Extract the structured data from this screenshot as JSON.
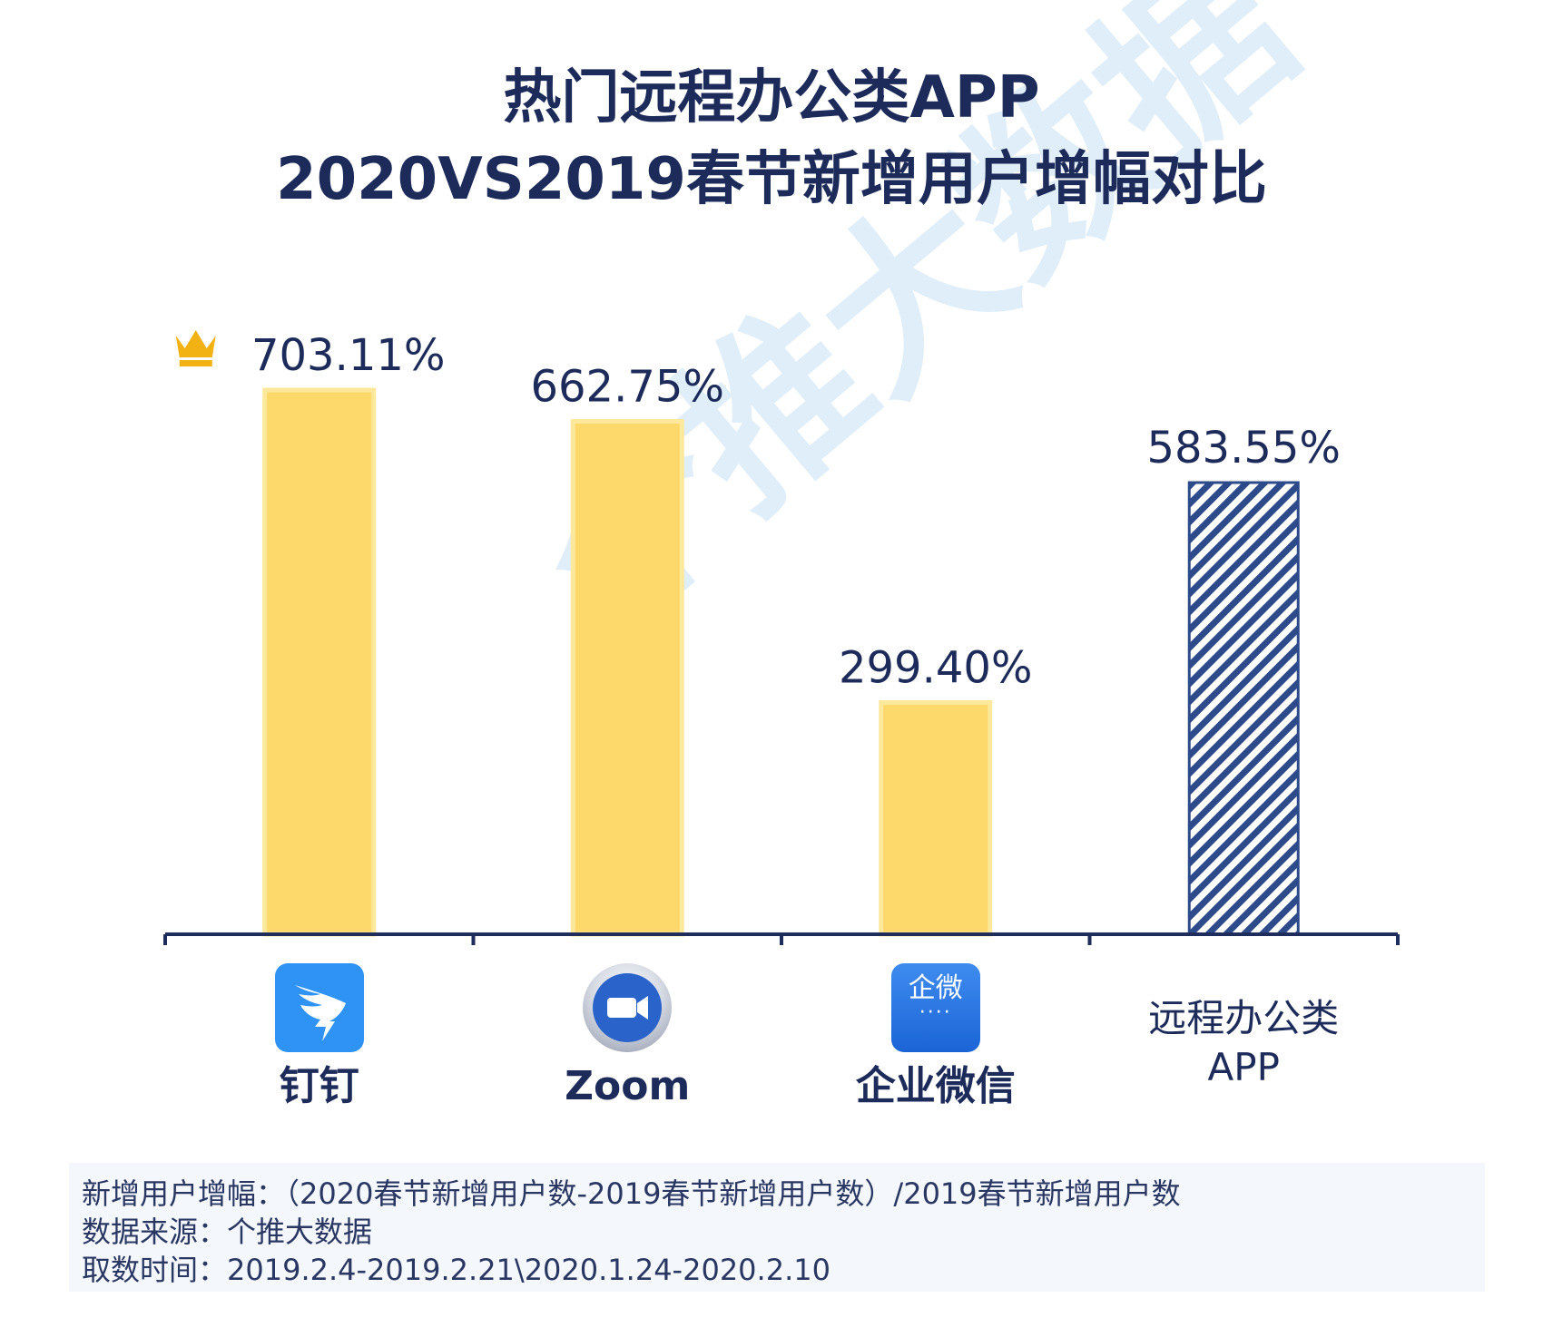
{
  "title": {
    "line1": "热门远程办公类APP",
    "line2": "2020VS2019春节新增用户增幅对比"
  },
  "watermark": "个推大数据",
  "chart_data": {
    "type": "bar",
    "categories": [
      "钉钉",
      "Zoom",
      "企业微信",
      "远程办公类APP"
    ],
    "category_lines": [
      [
        "钉钉"
      ],
      [
        "Zoom"
      ],
      [
        "企业微信"
      ],
      [
        "远程办公类",
        "APP"
      ]
    ],
    "values": [
      703.11,
      662.75,
      299.4,
      583.55
    ],
    "data_labels": [
      "703.11%",
      "662.75%",
      "299.40%",
      "583.55%"
    ],
    "ylim": [
      0,
      703.11
    ],
    "bar_styles": [
      "solid",
      "solid",
      "solid",
      "hatched"
    ],
    "top_marker": "crown-icon",
    "icons": [
      "dingtalk-icon",
      "zoom-icon",
      "wework-icon",
      ""
    ],
    "icon_text": {
      "wework": "企微",
      "wework_dots": "····"
    },
    "xlabel": "",
    "ylabel": ""
  },
  "colors": {
    "bar": "#fdd86a",
    "bar_edge": "#fde89c",
    "hatch": "#2d4a8a",
    "axis": "#1f2d5c",
    "label": "#1c2b5a",
    "crown": "#f2b213"
  },
  "notes": [
    "新增用户增幅：（2020春节新增用户数-2019春节新增用户数）/2019春节新增用户数",
    "数据来源：个推大数据",
    "取数时间：2019.2.4-2019.2.21\\2020.1.24-2020.2.10"
  ]
}
